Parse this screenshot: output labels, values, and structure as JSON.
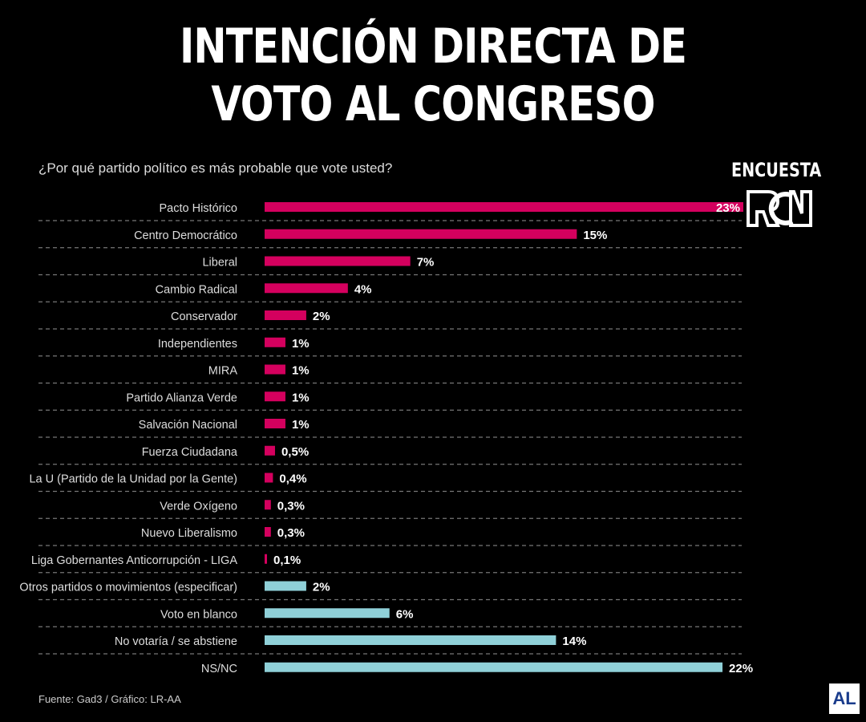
{
  "header": {
    "title_line1": "INTENCIÓN DIRECTA DE",
    "title_line2": "VOTO AL CONGRESO",
    "subtitle": "¿Por qué partido político es más probable que vote usted?",
    "brand": "ENCUESTA",
    "logo": "RCN"
  },
  "footer": {
    "source": "Fuente: Gad3 / Gráfico: LR-AA",
    "logo": "AL"
  },
  "colors": {
    "parties": "#d4005e",
    "other": "#8fd0d8",
    "background": "#000000",
    "grid": "#777777"
  },
  "chart_data": {
    "type": "bar",
    "orientation": "horizontal",
    "xlim": [
      0,
      23
    ],
    "grid": "dashed row separators",
    "legend": "none",
    "categories": [
      "Pacto Histórico",
      "Centro Democrático",
      "Liberal",
      "Cambio Radical",
      "Conservador",
      "Independientes",
      "MIRA",
      "Partido Alianza Verde",
      "Salvación Nacional",
      "Fuerza Ciudadana",
      "La U (Partido de la Unidad por la Gente)",
      "Verde Oxígeno",
      "Nuevo Liberalismo",
      "Liga Gobernantes Anticorrupción - LIGA",
      "Otros partidos o movimientos (especificar)",
      "Voto en blanco",
      "No votaría / se abstiene",
      "NS/NC"
    ],
    "values": [
      23,
      15,
      7,
      4,
      2,
      1,
      1,
      1,
      1,
      0.5,
      0.4,
      0.3,
      0.3,
      0.1,
      2,
      6,
      14,
      22
    ],
    "labels": [
      "23%",
      "15%",
      "7%",
      "4%",
      "2%",
      "1%",
      "1%",
      "1%",
      "1%",
      "0,5%",
      "0,4%",
      "0,3%",
      "0,3%",
      "0,1%",
      "2%",
      "6%",
      "14%",
      "22%"
    ],
    "groups": [
      "party",
      "party",
      "party",
      "party",
      "party",
      "party",
      "party",
      "party",
      "party",
      "party",
      "party",
      "party",
      "party",
      "party",
      "other",
      "other",
      "other",
      "other"
    ]
  }
}
